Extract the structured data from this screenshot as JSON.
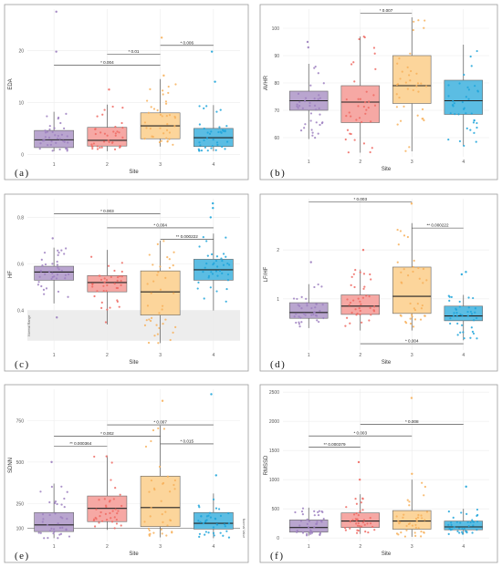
{
  "palette": {
    "purple": "#b9a5cf",
    "purple_dot": "#9c7fbf",
    "red": "#f6a8a4",
    "red_dot": "#ef6a63",
    "orange": "#fcd59b",
    "orange_dot": "#f7b05a",
    "blue": "#5bbde3",
    "blue_dot": "#1ea5da",
    "frame": "#9b9b9b",
    "grid": "#ececec",
    "normal_band": "#ededed"
  },
  "chart_data": [
    {
      "type": "box",
      "panel": "(a)",
      "xlabel": "Site",
      "ylabel": "EDA",
      "categories": [
        "1",
        "2",
        "3",
        "4"
      ],
      "ylim": [
        -1,
        28
      ],
      "yticks": [
        0,
        10,
        20
      ],
      "ytick_labels": [
        "0",
        "10",
        "20"
      ],
      "boxes": [
        {
          "lo": 0.6,
          "q1": 1.3,
          "med": 2.8,
          "q3": 4.6,
          "hi": 8.2
        },
        {
          "lo": 0.6,
          "q1": 1.6,
          "med": 2.7,
          "q3": 5.2,
          "hi": 9.6
        },
        {
          "lo": 1.5,
          "q1": 3.0,
          "med": 5.5,
          "q3": 8.0,
          "hi": 14.5
        },
        {
          "lo": 0.6,
          "q1": 1.5,
          "med": 3.2,
          "q3": 5.0,
          "hi": 9.5
        }
      ],
      "outliers": [
        [
          1,
          27.5
        ],
        [
          1,
          19.8
        ],
        [
          2,
          12.5
        ],
        [
          3,
          15.2
        ],
        [
          3,
          22.5
        ],
        [
          4,
          19.8
        ],
        [
          4,
          14
        ]
      ],
      "brackets": [
        {
          "from": 1,
          "to": 3,
          "y": 17.2,
          "label": "* 0.004"
        },
        {
          "from": 2,
          "to": 3,
          "y": 19.3,
          "label": "* 0.01"
        },
        {
          "from": 3,
          "to": 4,
          "y": 21.0,
          "label": "* 0.006"
        }
      ]
    },
    {
      "type": "box",
      "panel": "(b)",
      "xlabel": "Site",
      "ylabel": "AVHR",
      "categories": [
        "1",
        "2",
        "3",
        "4"
      ],
      "ylim": [
        53,
        107
      ],
      "yticks": [
        60,
        70,
        80,
        90,
        100
      ],
      "ytick_labels": [
        "60",
        "70",
        "80",
        "90",
        "100"
      ],
      "boxes": [
        {
          "lo": 59.5,
          "q1": 70,
          "med": 73.5,
          "q3": 77,
          "hi": 87
        },
        {
          "lo": 54.5,
          "q1": 65.5,
          "med": 73,
          "q3": 79,
          "hi": 97
        },
        {
          "lo": 55,
          "q1": 72.5,
          "med": 79,
          "q3": 90,
          "hi": 104
        },
        {
          "lo": 57,
          "q1": 68.5,
          "med": 73.5,
          "q3": 81,
          "hi": 94
        }
      ],
      "outliers": [
        [
          1,
          93
        ],
        [
          1,
          95
        ]
      ],
      "brackets": [
        {
          "from": 2,
          "to": 3,
          "y": 105.5,
          "label": "* 0.007"
        }
      ]
    },
    {
      "type": "box",
      "panel": "(c)",
      "xlabel": "Site",
      "ylabel": "HF",
      "categories": [
        "1",
        "2",
        "3",
        "4"
      ],
      "ylim": [
        0.23,
        0.88
      ],
      "yticks": [
        0.4,
        0.6,
        0.8
      ],
      "ytick_labels": [
        "0.4",
        "0.6",
        "0.8"
      ],
      "normal_band": [
        0.27,
        0.4
      ],
      "normal_label": "Normal Range",
      "boxes": [
        {
          "lo": 0.43,
          "q1": 0.53,
          "med": 0.565,
          "q3": 0.59,
          "hi": 0.67
        },
        {
          "lo": 0.34,
          "q1": 0.48,
          "med": 0.52,
          "q3": 0.55,
          "hi": 0.66
        },
        {
          "lo": 0.26,
          "q1": 0.38,
          "med": 0.48,
          "q3": 0.57,
          "hi": 0.7
        },
        {
          "lo": 0.4,
          "q1": 0.53,
          "med": 0.575,
          "q3": 0.62,
          "hi": 0.73
        }
      ],
      "outliers": [
        [
          1,
          0.37
        ],
        [
          1,
          0.71
        ],
        [
          4,
          0.86
        ],
        [
          4,
          0.8
        ],
        [
          4,
          0.84
        ]
      ],
      "brackets": [
        {
          "from": 1,
          "to": 3,
          "y": 0.815,
          "label": "* 0.003"
        },
        {
          "from": 2,
          "to": 4,
          "y": 0.755,
          "label": "* 0.004"
        },
        {
          "from": 3,
          "to": 4,
          "y": 0.705,
          "label": "** 0.000222"
        }
      ]
    },
    {
      "type": "box",
      "panel": "(d)",
      "xlabel": "Site",
      "ylabel": "LF/HF",
      "categories": [
        "1",
        "2",
        "3",
        "4"
      ],
      "ylim": [
        -0.05,
        3.05
      ],
      "yticks": [
        1,
        2
      ],
      "ytick_labels": [
        "1",
        "2"
      ],
      "boxes": [
        {
          "lo": 0.4,
          "q1": 0.6,
          "med": 0.72,
          "q3": 0.92,
          "hi": 1.3
        },
        {
          "lo": 0.35,
          "q1": 0.68,
          "med": 0.85,
          "q3": 1.08,
          "hi": 1.6
        },
        {
          "lo": 0.35,
          "q1": 0.7,
          "med": 1.05,
          "q3": 1.65,
          "hi": 2.55
        },
        {
          "lo": 0.15,
          "q1": 0.55,
          "med": 0.65,
          "q3": 0.85,
          "hi": 1.08
        }
      ],
      "outliers": [
        [
          1,
          1.75
        ],
        [
          2,
          2.0
        ],
        [
          3,
          2.95
        ],
        [
          4,
          1.5
        ],
        [
          4,
          1.55
        ]
      ],
      "brackets": [
        {
          "from": 1,
          "to": 3,
          "y": 2.98,
          "label": "* 0.003"
        },
        {
          "from": 3,
          "to": 4,
          "y": 2.45,
          "label": "** 0.000222"
        },
        {
          "from": 2,
          "to": 4,
          "y": 0.08,
          "label": "* 0.004",
          "below": true
        }
      ]
    },
    {
      "type": "box",
      "panel": "(e)",
      "xlabel": "Site",
      "ylabel": "SDNN",
      "categories": [
        "1",
        "2",
        "3",
        "4"
      ],
      "ylim": [
        20,
        940
      ],
      "yticks": [
        100,
        250,
        500,
        750
      ],
      "ytick_labels": [
        "100",
        "250",
        "500",
        "750"
      ],
      "normal_line": 100,
      "normal_label": "Normal Value",
      "boxes": [
        {
          "lo": 40,
          "q1": 80,
          "med": 120,
          "q3": 195,
          "hi": 370
        },
        {
          "lo": 90,
          "q1": 140,
          "med": 220,
          "q3": 295,
          "hi": 540
        },
        {
          "lo": 45,
          "q1": 110,
          "med": 225,
          "q3": 415,
          "hi": 720
        },
        {
          "lo": 40,
          "q1": 95,
          "med": 130,
          "q3": 195,
          "hi": 310
        }
      ],
      "outliers": [
        [
          1,
          500
        ],
        [
          3,
          870
        ],
        [
          4,
          910
        ],
        [
          4,
          420
        ]
      ],
      "brackets": [
        {
          "from": 2,
          "to": 4,
          "y": 725,
          "label": "* 0.007"
        },
        {
          "from": 1,
          "to": 3,
          "y": 655,
          "label": "* 0.002"
        },
        {
          "from": 3,
          "to": 4,
          "y": 610,
          "label": "* 0.015"
        },
        {
          "from": 1,
          "to": 2,
          "y": 595,
          "label": "** 0.000364"
        }
      ]
    },
    {
      "type": "box",
      "panel": "(f)",
      "xlabel": "Site",
      "ylabel": "RMSSD",
      "categories": [
        "1",
        "2",
        "3",
        "4"
      ],
      "ylim": [
        -60,
        2550
      ],
      "yticks": [
        0,
        500,
        1000,
        1500,
        2000,
        2500
      ],
      "ytick_labels": [
        "0",
        "500",
        "1000",
        "1500",
        "2000",
        "2500"
      ],
      "boxes": [
        {
          "lo": 40,
          "q1": 100,
          "med": 180,
          "q3": 310,
          "hi": 520
        },
        {
          "lo": 70,
          "q1": 180,
          "med": 290,
          "q3": 430,
          "hi": 750
        },
        {
          "lo": 20,
          "q1": 150,
          "med": 290,
          "q3": 470,
          "hi": 1000
        },
        {
          "lo": 60,
          "q1": 140,
          "med": 190,
          "q3": 290,
          "hi": 500
        }
      ],
      "outliers": [
        [
          2,
          1000
        ],
        [
          2,
          1300
        ],
        [
          3,
          2400
        ],
        [
          3,
          1100
        ],
        [
          4,
          880
        ]
      ],
      "brackets": [
        {
          "from": 2,
          "to": 4,
          "y": 1950,
          "label": "* 0.008"
        },
        {
          "from": 1,
          "to": 3,
          "y": 1750,
          "label": "* 0.003"
        },
        {
          "from": 1,
          "to": 2,
          "y": 1560,
          "label": "** 0.000379"
        }
      ]
    }
  ]
}
